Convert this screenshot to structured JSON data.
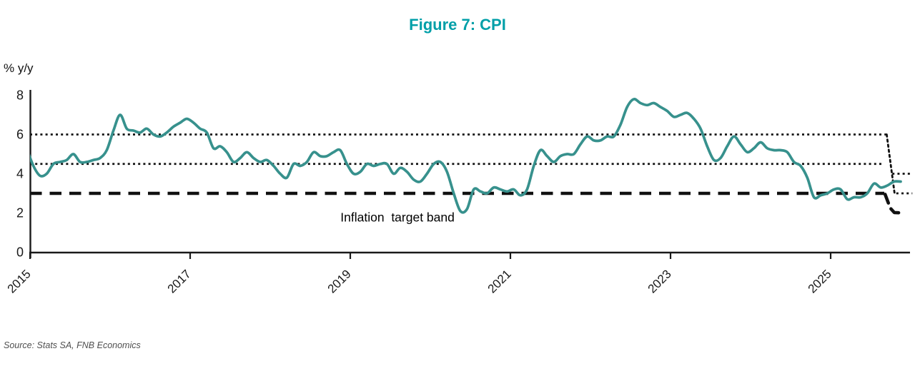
{
  "title": "Figure 7: CPI",
  "y_axis_title": "% y/y",
  "source": "Source: Stats SA, FNB Economics",
  "colors": {
    "title": "#009FA8",
    "cpi_line": "#37918D",
    "band_lines": "#111111",
    "axis": "#1a1a1a",
    "tick_text": "#1a1a1a",
    "source_text": "#4f4f4f"
  },
  "chart_data": {
    "type": "line",
    "title": "Figure 7: CPI",
    "ylabel": "% y/y",
    "xlabel": "",
    "ylim": [
      0,
      8
    ],
    "grid": false,
    "legend": "none",
    "y_ticks": [
      0,
      2,
      4,
      6,
      8
    ],
    "x_ticks": [
      2015,
      2017,
      2019,
      2021,
      2023,
      2025
    ],
    "annotation": {
      "text": "Inflation  target band",
      "t": 2019.59,
      "v": 1.76
    },
    "series": [
      {
        "name": "CPI % y/y",
        "start": "2014-12",
        "frequency": "monthly",
        "values": [
          5.3,
          4.4,
          3.9,
          4.0,
          4.5,
          4.6,
          4.7,
          5.0,
          4.6,
          4.6,
          4.7,
          4.8,
          5.2,
          6.2,
          7.0,
          6.3,
          6.2,
          6.1,
          6.3,
          6.0,
          5.9,
          6.1,
          6.4,
          6.6,
          6.8,
          6.6,
          6.3,
          6.1,
          5.3,
          5.4,
          5.1,
          4.6,
          4.8,
          5.1,
          4.8,
          4.6,
          4.7,
          4.4,
          4.0,
          3.8,
          4.5,
          4.4,
          4.6,
          5.1,
          4.9,
          4.9,
          5.1,
          5.2,
          4.5,
          4.0,
          4.1,
          4.5,
          4.4,
          4.5,
          4.5,
          4.0,
          4.3,
          4.1,
          3.7,
          3.6,
          4.0,
          4.5,
          4.6,
          4.1,
          3.0,
          2.1,
          2.2,
          3.2,
          3.1,
          3.0,
          3.3,
          3.2,
          3.1,
          3.2,
          2.9,
          3.2,
          4.4,
          5.2,
          4.9,
          4.6,
          4.9,
          5.0,
          5.0,
          5.5,
          5.9,
          5.7,
          5.7,
          5.9,
          5.9,
          6.5,
          7.4,
          7.8,
          7.6,
          7.5,
          7.6,
          7.4,
          7.2,
          6.9,
          7.0,
          7.1,
          6.8,
          6.3,
          5.4,
          4.7,
          4.8,
          5.4,
          5.9,
          5.5,
          5.1,
          5.3,
          5.6,
          5.3,
          5.2,
          5.2,
          5.1,
          4.6,
          4.4,
          3.8,
          2.8,
          2.9,
          3.0,
          3.2,
          3.2,
          2.7,
          2.8,
          2.8,
          3.0,
          3.5,
          3.3,
          3.4,
          3.6,
          3.6
        ]
      }
    ],
    "reference_lines": [
      {
        "name": "target-band-upper-6pct",
        "value": 6,
        "style": "dotted",
        "t0": 2015.0,
        "t1": 2025.7
      },
      {
        "name": "target-band-midpoint-4p5",
        "value": 4.5,
        "style": "dotted",
        "t0": 2015.0,
        "t1": 2025.66
      },
      {
        "name": "target-3pct",
        "value": 3,
        "style": "dashed",
        "t0": 2015.0,
        "t1": 2025.67
      },
      {
        "name": "new-band-upper-4pct",
        "value": 4,
        "style": "dotted",
        "t0": 2025.77,
        "t1": 2026.02
      },
      {
        "name": "new-band-mid-3pct",
        "value": 3,
        "style": "dotted",
        "t0": 2025.82,
        "t1": 2026.02
      }
    ],
    "transition_segments": [
      {
        "name": "band-step-down-dotted",
        "style": "dotted",
        "points": [
          [
            2025.7,
            6.0
          ],
          [
            2025.8,
            2.95
          ]
        ]
      },
      {
        "name": "target-step-down-to-2",
        "style": "dashed",
        "points": [
          [
            2025.68,
            2.95
          ],
          [
            2025.745,
            2.25
          ],
          [
            2025.795,
            2.02
          ],
          [
            2025.895,
            2.0
          ]
        ]
      }
    ]
  }
}
